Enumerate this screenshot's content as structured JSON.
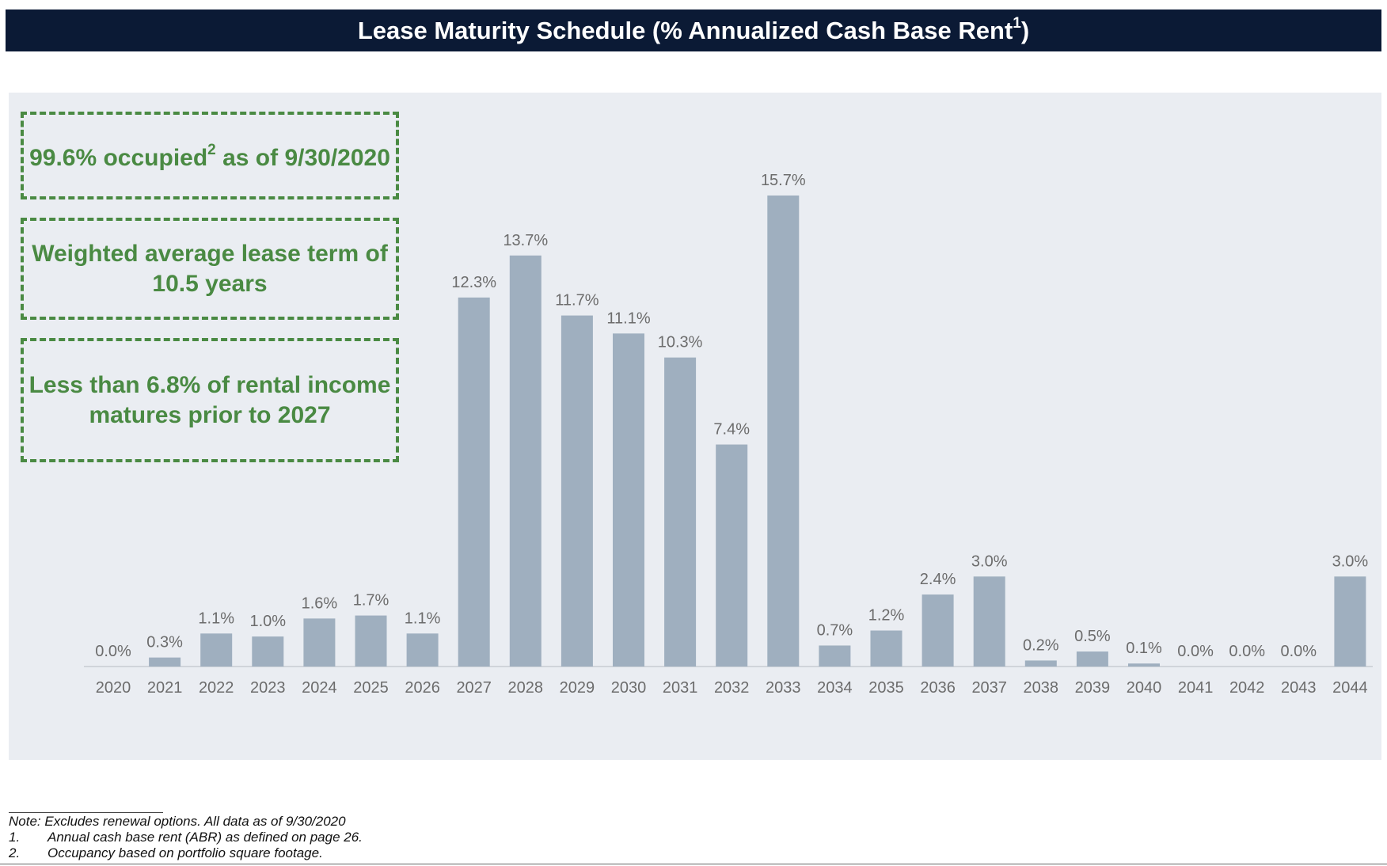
{
  "header": {
    "title": "Lease Maturity Schedule (% Annualized Cash Base Rent",
    "title_sup": "1",
    "title_close": ")"
  },
  "callouts": {
    "occupied": {
      "prefix": "99.6% occupied",
      "sup": "2",
      "suffix": " as of 9/30/2020"
    },
    "lease_term": {
      "text": "Weighted average lease term of 10.5 years"
    },
    "maturity": {
      "text": "Less than 6.8% of rental income matures prior to 2027"
    }
  },
  "chart_data": {
    "type": "bar",
    "title": "Lease Maturity Schedule (% Annualized Cash Base Rent1)",
    "xlabel": "",
    "ylabel": "",
    "categories": [
      "2020",
      "2021",
      "2022",
      "2023",
      "2024",
      "2025",
      "2026",
      "2027",
      "2028",
      "2029",
      "2030",
      "2031",
      "2032",
      "2033",
      "2034",
      "2035",
      "2036",
      "2037",
      "2038",
      "2039",
      "2040",
      "2041",
      "2042",
      "2043",
      "2044"
    ],
    "values": [
      0.0,
      0.3,
      1.1,
      1.0,
      1.6,
      1.7,
      1.1,
      12.3,
      13.7,
      11.7,
      11.1,
      10.3,
      7.4,
      15.7,
      0.7,
      1.2,
      2.4,
      3.0,
      0.2,
      0.5,
      0.1,
      0.0,
      0.0,
      0.0,
      3.0
    ],
    "labels": [
      "0.0%",
      "0.3%",
      "1.1%",
      "1.0%",
      "1.6%",
      "1.7%",
      "1.1%",
      "12.3%",
      "13.7%",
      "11.7%",
      "11.1%",
      "10.3%",
      "7.4%",
      "15.7%",
      "0.7%",
      "1.2%",
      "2.4%",
      "3.0%",
      "0.2%",
      "0.5%",
      "0.1%",
      "0.0%",
      "0.0%",
      "0.0%",
      "3.0%"
    ],
    "unit": "%",
    "grid": false,
    "legend": "none"
  },
  "footnotes": {
    "note": "Note: Excludes renewal options. All data as of 9/30/2020",
    "items": [
      {
        "num": "1.",
        "text": "Annual cash base rent (ABR) as defined on page 26."
      },
      {
        "num": "2.",
        "text": "Occupancy based on portfolio square footage."
      }
    ]
  },
  "colors": {
    "header_bg": "#0b1a35",
    "panel_bg": "#eaedf2",
    "bar": "#9fafbf",
    "label": "#6c6c6c",
    "callout_green": "#4a8a43",
    "axis": "#d0d4da"
  }
}
